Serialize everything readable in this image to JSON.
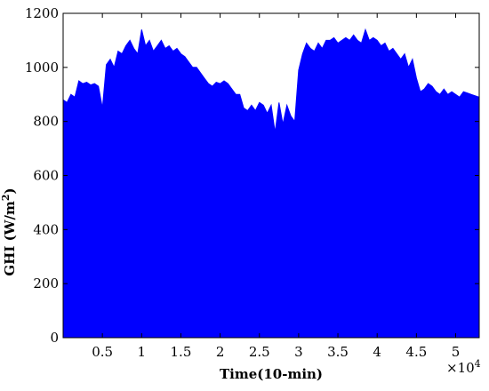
{
  "chart_data": {
    "type": "area",
    "title": "",
    "xlabel": "Time(10-min)",
    "ylabel_main": "GHI (W/m",
    "ylabel_sup": "2",
    "ylabel_close": ")",
    "x_multiplier_base": "×10",
    "x_multiplier_exp": "4",
    "xlim": [
      0,
      53000
    ],
    "ylim": [
      0,
      1200
    ],
    "x_ticks": [
      5000,
      10000,
      15000,
      20000,
      25000,
      30000,
      35000,
      40000,
      45000,
      50000
    ],
    "x_tick_labels": [
      "0.5",
      "1",
      "1.5",
      "2",
      "2.5",
      "3",
      "3.5",
      "4",
      "4.5",
      "5"
    ],
    "y_ticks": [
      0,
      200,
      400,
      600,
      800,
      1000,
      1200
    ],
    "y_tick_labels": [
      "0",
      "200",
      "400",
      "600",
      "800",
      "1000",
      "1200"
    ],
    "grid": false,
    "legend": "none",
    "series": [
      {
        "color": "#0000ff",
        "x": [
          0,
          500,
          1000,
          1500,
          2000,
          2500,
          3000,
          3500,
          4000,
          4500,
          5000,
          5500,
          6000,
          6500,
          7000,
          7500,
          8000,
          8500,
          9000,
          9500,
          10000,
          10500,
          11000,
          11500,
          12000,
          12500,
          13000,
          13500,
          14000,
          14500,
          15000,
          15500,
          16000,
          16500,
          17000,
          17500,
          18000,
          18500,
          19000,
          19500,
          20000,
          20500,
          21000,
          21500,
          22000,
          22500,
          23000,
          23500,
          24000,
          24500,
          25000,
          25500,
          26000,
          26500,
          27000,
          27500,
          28000,
          28500,
          29000,
          29500,
          30000,
          30500,
          31000,
          31500,
          32000,
          32500,
          33000,
          33500,
          34000,
          34500,
          35000,
          35500,
          36000,
          36500,
          37000,
          37500,
          38000,
          38500,
          39000,
          39500,
          40000,
          40500,
          41000,
          41500,
          42000,
          42500,
          43000,
          43500,
          44000,
          44500,
          45000,
          45500,
          46000,
          46500,
          47000,
          47500,
          48000,
          48500,
          49000,
          49500,
          50000,
          50500,
          51000,
          51500,
          52000,
          52500,
          53000
        ],
        "y": [
          880,
          870,
          900,
          890,
          950,
          940,
          945,
          935,
          940,
          930,
          850,
          1010,
          1030,
          1000,
          1060,
          1050,
          1080,
          1100,
          1070,
          1050,
          1140,
          1080,
          1100,
          1060,
          1080,
          1100,
          1070,
          1080,
          1060,
          1070,
          1050,
          1040,
          1020,
          1000,
          1000,
          980,
          960,
          940,
          930,
          945,
          940,
          950,
          940,
          920,
          900,
          900,
          850,
          840,
          860,
          840,
          870,
          860,
          830,
          860,
          760,
          870,
          790,
          860,
          820,
          800,
          990,
          1050,
          1090,
          1070,
          1060,
          1090,
          1070,
          1100,
          1100,
          1110,
          1090,
          1100,
          1110,
          1100,
          1120,
          1100,
          1090,
          1140,
          1100,
          1110,
          1100,
          1080,
          1090,
          1060,
          1070,
          1050,
          1030,
          1050,
          1000,
          1030,
          960,
          910,
          920,
          940,
          930,
          910,
          900,
          920,
          900,
          910,
          900,
          890,
          910,
          905,
          900,
          895,
          890
        ]
      }
    ]
  }
}
